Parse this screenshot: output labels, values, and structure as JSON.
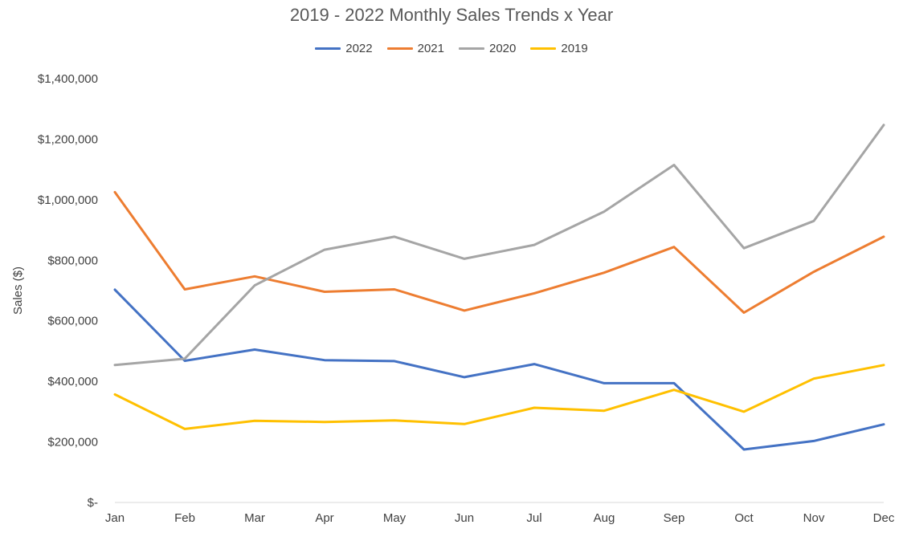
{
  "chart_data": {
    "type": "line",
    "title": "2019 - 2022 Monthly Sales Trends x Year",
    "xlabel": "",
    "ylabel": "Sales ($)",
    "categories": [
      "Jan",
      "Feb",
      "Mar",
      "Apr",
      "May",
      "Jun",
      "Jul",
      "Aug",
      "Sep",
      "Oct",
      "Nov",
      "Dec"
    ],
    "ylim": [
      0,
      1400000
    ],
    "yticks": [
      0,
      200000,
      400000,
      600000,
      800000,
      1000000,
      1200000,
      1400000
    ],
    "ytick_labels": [
      "$-",
      "$200,000",
      "$400,000",
      "$600,000",
      "$800,000",
      "$1,000,000",
      "$1,200,000",
      "$1,400,000"
    ],
    "grid": false,
    "legend_position": "top",
    "series": [
      {
        "name": "2022",
        "color": "#4472C4",
        "values": [
          703000,
          468000,
          505000,
          470000,
          467000,
          414000,
          457000,
          394000,
          394000,
          175000,
          203000,
          258000
        ]
      },
      {
        "name": "2021",
        "color": "#ED7D31",
        "values": [
          1025000,
          704000,
          747000,
          696000,
          704000,
          634000,
          691000,
          759000,
          844000,
          627000,
          762000,
          878000
        ]
      },
      {
        "name": "2020",
        "color": "#A5A5A5",
        "values": [
          454000,
          475000,
          717000,
          835000,
          878000,
          805000,
          851000,
          961000,
          1115000,
          840000,
          930000,
          1247000
        ]
      },
      {
        "name": "2019",
        "color": "#FFC000",
        "values": [
          357000,
          243000,
          270000,
          266000,
          271000,
          259000,
          313000,
          303000,
          372000,
          300000,
          409000,
          454000
        ]
      }
    ]
  }
}
